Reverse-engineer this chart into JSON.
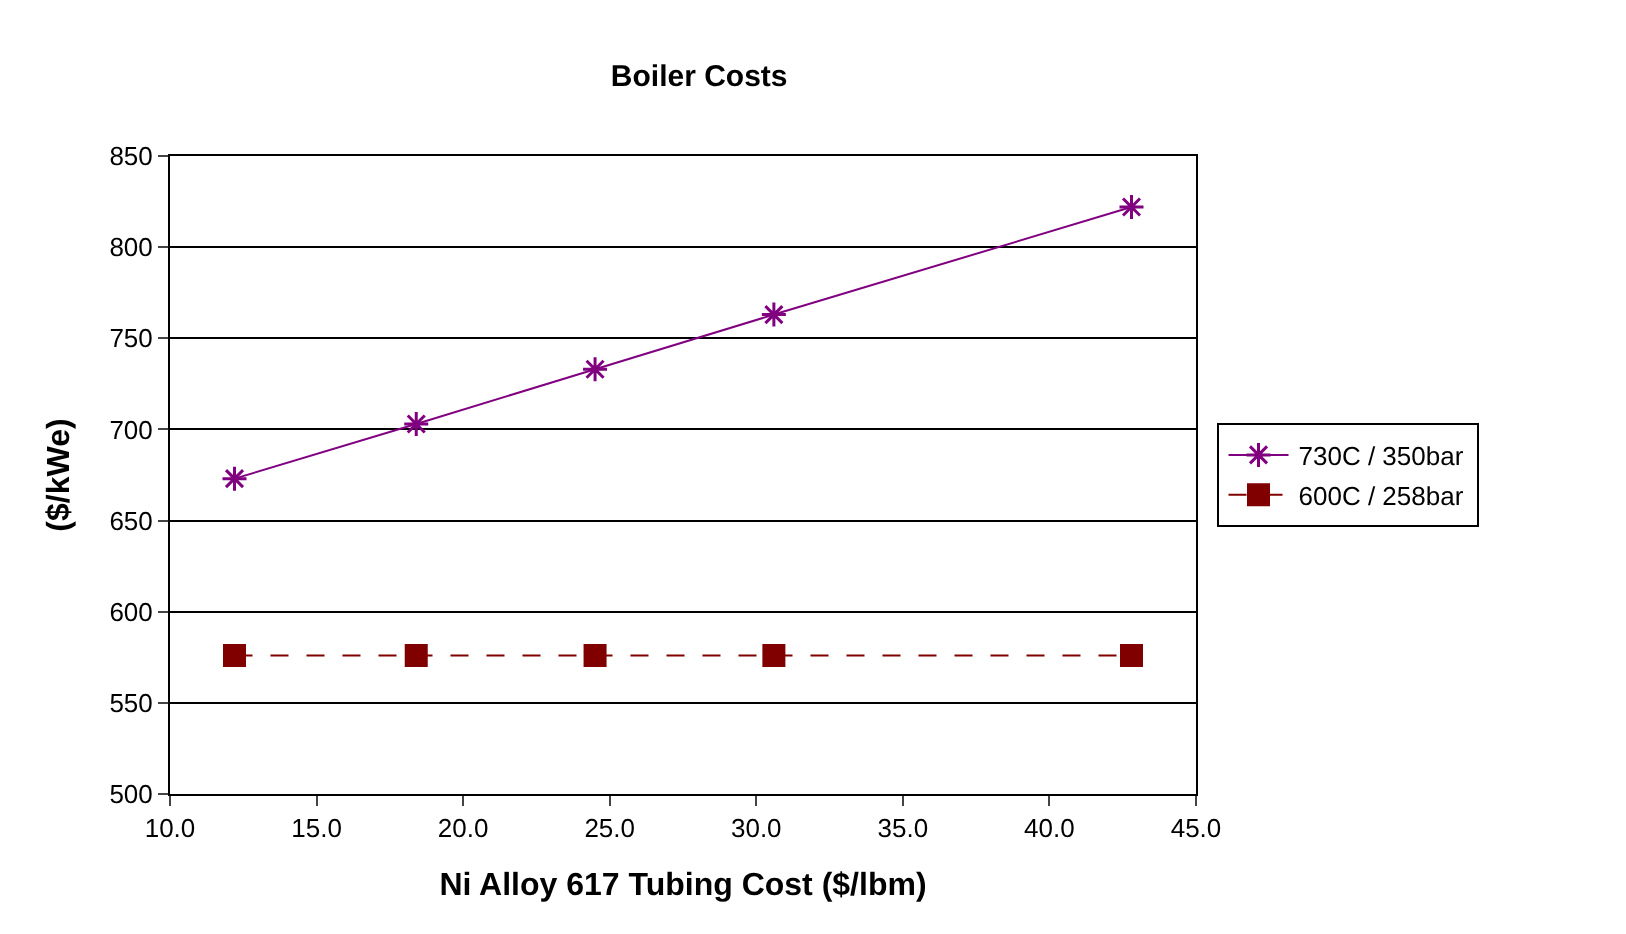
{
  "chart_data": {
    "type": "line",
    "title": "Boiler Costs",
    "xlabel": "Ni Alloy 617 Tubing Cost ($/lbm)",
    "ylabel": "($/kWe)",
    "x": [
      12.2,
      18.4,
      24.5,
      30.6,
      42.8
    ],
    "series": [
      {
        "name": "730C / 350bar",
        "color": "#800080",
        "values": [
          673,
          703,
          733,
          763,
          822
        ],
        "marker": "cross",
        "line_style": "solid"
      },
      {
        "name": "600C / 258bar",
        "color": "#800000",
        "values": [
          576,
          576,
          576,
          576,
          576
        ],
        "marker": "square",
        "line_style": "dashed"
      }
    ],
    "xlim": [
      10,
      45
    ],
    "xticks": [
      {
        "value": 10,
        "label": "10.0"
      },
      {
        "value": 15,
        "label": "15.0"
      },
      {
        "value": 20,
        "label": "20.0"
      },
      {
        "value": 25,
        "label": "25.0"
      },
      {
        "value": 30,
        "label": "30.0"
      },
      {
        "value": 35,
        "label": "35.0"
      },
      {
        "value": 40,
        "label": "40.0"
      },
      {
        "value": 45,
        "label": "45.0"
      }
    ],
    "ylim": [
      500,
      850
    ],
    "yticks": [
      500,
      550,
      600,
      650,
      700,
      750,
      800,
      850
    ],
    "grid": "y",
    "legend": "right"
  }
}
